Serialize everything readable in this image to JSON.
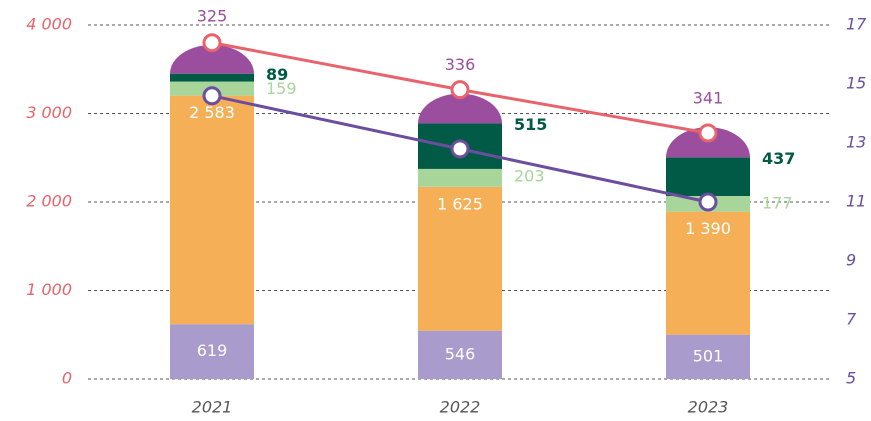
{
  "chart_data": {
    "type": "bar",
    "stacked": true,
    "categories": [
      "2021",
      "2022",
      "2023"
    ],
    "series": [
      {
        "color": "#a99bcc",
        "values": [
          619,
          546,
          501
        ],
        "label_position": "inside",
        "label_color": "#ffffff"
      },
      {
        "color": "#f5b057",
        "values": [
          2583,
          1625,
          1390
        ],
        "value_labels": [
          "2 583",
          "1 625",
          "1 390"
        ],
        "label_position": "inside",
        "label_color": "#ffffff"
      },
      {
        "color": "#a8d59a",
        "values": [
          159,
          203,
          177
        ],
        "label_position": "right",
        "label_color": "#a8d59a"
      },
      {
        "color": "#005a46",
        "values": [
          89,
          515,
          437
        ],
        "label_position": "right",
        "label_color": "#005a46"
      },
      {
        "color": "#9b4e9e",
        "values": [
          325,
          336,
          341
        ],
        "label_position": "top",
        "label_color": "#9b4e9e",
        "cap": true
      },
      {
        "type": "line",
        "color": "#e8636b",
        "values": [
          3800,
          3270,
          2780
        ]
      },
      {
        "type": "line",
        "color": "#6b4f9e",
        "axis": "y2",
        "values": [
          14.6,
          12.8,
          11.0
        ]
      }
    ],
    "ylim": [
      0,
      4000
    ],
    "yticks": [
      0,
      {
        "value": 1000,
        "label": "1 000"
      },
      {
        "value": 2000,
        "label": "2 000"
      },
      {
        "value": 3000,
        "label": "3 000"
      },
      {
        "value": 4000,
        "label": "4 000"
      }
    ],
    "y_color": "#e8636b",
    "y2lim": [
      5,
      17
    ],
    "y2ticks": [
      5,
      7,
      9,
      11,
      13,
      15,
      17
    ],
    "y2_color": "#6b4f9e",
    "grid": true
  }
}
